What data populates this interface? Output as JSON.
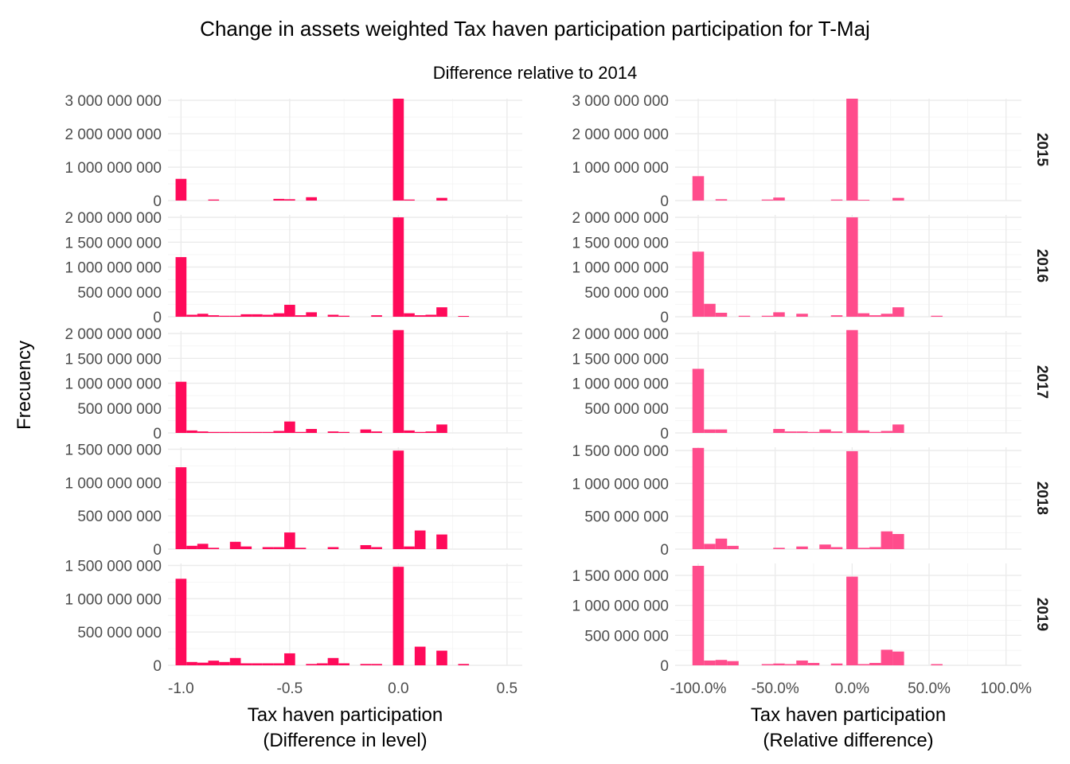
{
  "chart_data": {
    "type": "bar",
    "title": "Change in assets weighted Tax haven participation participation for T-Maj",
    "subtitle": "Difference relative to 2014",
    "ylabel": "Frecuency",
    "rows": [
      "2015",
      "2016",
      "2017",
      "2018",
      "2019"
    ],
    "colors": {
      "left": "#ff0a5a",
      "right": "#ff4c8c"
    },
    "columns": [
      {
        "xlabel": "Tax haven participation\n(Difference in level)",
        "xlim": [
          -1.06,
          0.57
        ],
        "xticks": [
          -1.0,
          -0.5,
          0.0,
          0.5
        ],
        "xtick_labels": [
          "-1.0",
          "-0.5",
          "0.0",
          "0.5"
        ],
        "binwidth": 0.05,
        "panels": [
          {
            "year": "2015",
            "ylim": [
              0,
              3050000000
            ],
            "yticks": [
              0,
              1000000000,
              2000000000,
              3000000000
            ],
            "ytick_labels": [
              "0",
              "1 000 000 000",
              "2 000 000 000",
              "3 000 000 000"
            ],
            "bars": [
              [
                -1.0,
                650000000
              ],
              [
                -0.85,
                30000000
              ],
              [
                -0.55,
                50000000
              ],
              [
                -0.5,
                40000000
              ],
              [
                -0.4,
                100000000
              ],
              [
                0.0,
                3050000000
              ],
              [
                0.05,
                30000000
              ],
              [
                0.2,
                80000000
              ]
            ]
          },
          {
            "year": "2016",
            "ylim": [
              0,
              2050000000
            ],
            "yticks": [
              0,
              500000000,
              1000000000,
              1500000000,
              2000000000
            ],
            "ytick_labels": [
              "0",
              "500 000 000",
              "1 000 000 000",
              "1 500 000 000",
              "2 000 000 000"
            ],
            "bars": [
              [
                -1.0,
                1200000000
              ],
              [
                -0.95,
                40000000
              ],
              [
                -0.9,
                60000000
              ],
              [
                -0.85,
                30000000
              ],
              [
                -0.8,
                20000000
              ],
              [
                -0.75,
                20000000
              ],
              [
                -0.7,
                50000000
              ],
              [
                -0.65,
                50000000
              ],
              [
                -0.6,
                40000000
              ],
              [
                -0.55,
                70000000
              ],
              [
                -0.5,
                240000000
              ],
              [
                -0.45,
                30000000
              ],
              [
                -0.4,
                90000000
              ],
              [
                -0.3,
                40000000
              ],
              [
                -0.25,
                20000000
              ],
              [
                -0.1,
                30000000
              ],
              [
                0.0,
                2000000000
              ],
              [
                0.05,
                70000000
              ],
              [
                0.1,
                30000000
              ],
              [
                0.15,
                40000000
              ],
              [
                0.2,
                190000000
              ],
              [
                0.3,
                10000000
              ]
            ]
          },
          {
            "year": "2017",
            "ylim": [
              0,
              2050000000
            ],
            "yticks": [
              0,
              500000000,
              1000000000,
              1500000000,
              2000000000
            ],
            "ytick_labels": [
              "0",
              "500 000 000",
              "1 000 000 000",
              "1 500 000 000",
              "2 000 000 000"
            ],
            "bars": [
              [
                -1.0,
                1030000000
              ],
              [
                -0.95,
                50000000
              ],
              [
                -0.9,
                30000000
              ],
              [
                -0.85,
                20000000
              ],
              [
                -0.8,
                20000000
              ],
              [
                -0.75,
                20000000
              ],
              [
                -0.7,
                20000000
              ],
              [
                -0.65,
                20000000
              ],
              [
                -0.6,
                20000000
              ],
              [
                -0.55,
                40000000
              ],
              [
                -0.5,
                230000000
              ],
              [
                -0.45,
                20000000
              ],
              [
                -0.4,
                80000000
              ],
              [
                -0.3,
                30000000
              ],
              [
                -0.25,
                20000000
              ],
              [
                -0.15,
                70000000
              ],
              [
                -0.1,
                30000000
              ],
              [
                0.0,
                2070000000
              ],
              [
                0.05,
                50000000
              ],
              [
                0.1,
                20000000
              ],
              [
                0.15,
                30000000
              ],
              [
                0.2,
                170000000
              ]
            ]
          },
          {
            "year": "2018",
            "ylim": [
              0,
              1530000000
            ],
            "yticks": [
              0,
              500000000,
              1000000000,
              1500000000
            ],
            "ytick_labels": [
              "0",
              "500 000 000",
              "1 000 000 000",
              "1 500 000 000"
            ],
            "bars": [
              [
                -1.0,
                1230000000
              ],
              [
                -0.95,
                50000000
              ],
              [
                -0.9,
                80000000
              ],
              [
                -0.85,
                20000000
              ],
              [
                -0.75,
                110000000
              ],
              [
                -0.7,
                40000000
              ],
              [
                -0.6,
                30000000
              ],
              [
                -0.55,
                30000000
              ],
              [
                -0.5,
                250000000
              ],
              [
                -0.45,
                20000000
              ],
              [
                -0.3,
                30000000
              ],
              [
                -0.15,
                60000000
              ],
              [
                -0.1,
                30000000
              ],
              [
                0.0,
                1480000000
              ],
              [
                0.05,
                40000000
              ],
              [
                0.1,
                280000000
              ],
              [
                0.2,
                220000000
              ]
            ]
          },
          {
            "year": "2019",
            "ylim": [
              0,
              1530000000
            ],
            "yticks": [
              0,
              500000000,
              1000000000,
              1500000000
            ],
            "ytick_labels": [
              "0",
              "500 000 000",
              "1 000 000 000",
              "1 500 000 000"
            ],
            "bars": [
              [
                -1.0,
                1300000000
              ],
              [
                -0.95,
                50000000
              ],
              [
                -0.9,
                40000000
              ],
              [
                -0.85,
                70000000
              ],
              [
                -0.8,
                50000000
              ],
              [
                -0.75,
                110000000
              ],
              [
                -0.7,
                30000000
              ],
              [
                -0.65,
                30000000
              ],
              [
                -0.6,
                30000000
              ],
              [
                -0.55,
                30000000
              ],
              [
                -0.5,
                180000000
              ],
              [
                -0.4,
                20000000
              ],
              [
                -0.35,
                30000000
              ],
              [
                -0.3,
                110000000
              ],
              [
                -0.25,
                30000000
              ],
              [
                -0.15,
                20000000
              ],
              [
                -0.1,
                20000000
              ],
              [
                0.0,
                1480000000
              ],
              [
                0.1,
                280000000
              ],
              [
                0.2,
                220000000
              ],
              [
                0.3,
                20000000
              ]
            ]
          }
        ]
      },
      {
        "xlabel": "Tax haven participation\n(Relative difference)",
        "xlim": [
          -1.15,
          1.1
        ],
        "xticks": [
          -1.0,
          -0.5,
          0.0,
          0.5,
          1.0
        ],
        "xtick_labels": [
          "-100.0%",
          "-50.0%",
          "0.0%",
          "50.0%",
          "100.0%"
        ],
        "binwidth": 0.075,
        "panels": [
          {
            "year": "2015",
            "ylim": [
              0,
              3050000000
            ],
            "yticks": [
              0,
              1000000000,
              2000000000,
              3000000000
            ],
            "ytick_labels": [
              "0",
              "1 000 000 000",
              "2 000 000 000",
              "3 000 000 000"
            ],
            "bars": [
              [
                -1.0,
                730000000
              ],
              [
                -0.85,
                40000000
              ],
              [
                -0.55,
                30000000
              ],
              [
                -0.475,
                90000000
              ],
              [
                -0.1,
                30000000
              ],
              [
                0.0,
                3050000000
              ],
              [
                0.075,
                20000000
              ],
              [
                0.3,
                80000000
              ]
            ]
          },
          {
            "year": "2016",
            "ylim": [
              0,
              2050000000
            ],
            "yticks": [
              0,
              500000000,
              1000000000,
              1500000000,
              2000000000
            ],
            "ytick_labels": [
              "0",
              "500 000 000",
              "1 000 000 000",
              "1 500 000 000",
              "2 000 000 000"
            ],
            "bars": [
              [
                -1.0,
                1310000000
              ],
              [
                -0.925,
                260000000
              ],
              [
                -0.85,
                80000000
              ],
              [
                -0.7,
                20000000
              ],
              [
                -0.55,
                20000000
              ],
              [
                -0.475,
                90000000
              ],
              [
                -0.325,
                60000000
              ],
              [
                -0.1,
                30000000
              ],
              [
                0.0,
                2000000000
              ],
              [
                0.075,
                70000000
              ],
              [
                0.15,
                30000000
              ],
              [
                0.225,
                60000000
              ],
              [
                0.3,
                190000000
              ],
              [
                0.55,
                20000000
              ]
            ]
          },
          {
            "year": "2017",
            "ylim": [
              0,
              2050000000
            ],
            "yticks": [
              0,
              500000000,
              1000000000,
              1500000000,
              2000000000
            ],
            "ytick_labels": [
              "0",
              "500 000 000",
              "1 000 000 000",
              "1 500 000 000",
              "2 000 000 000"
            ],
            "bars": [
              [
                -1.0,
                1290000000
              ],
              [
                -0.925,
                70000000
              ],
              [
                -0.85,
                70000000
              ],
              [
                -0.475,
                80000000
              ],
              [
                -0.4,
                30000000
              ],
              [
                -0.325,
                30000000
              ],
              [
                -0.25,
                20000000
              ],
              [
                -0.175,
                70000000
              ],
              [
                -0.1,
                30000000
              ],
              [
                0.0,
                2070000000
              ],
              [
                0.075,
                50000000
              ],
              [
                0.15,
                20000000
              ],
              [
                0.225,
                40000000
              ],
              [
                0.3,
                170000000
              ]
            ]
          },
          {
            "year": "2018",
            "ylim": [
              0,
              1550000000
            ],
            "yticks": [
              0,
              500000000,
              1000000000,
              1500000000
            ],
            "ytick_labels": [
              "0",
              "500 000 000",
              "1 000 000 000",
              "1 500 000 000"
            ],
            "bars": [
              [
                -1.0,
                1540000000
              ],
              [
                -0.925,
                80000000
              ],
              [
                -0.85,
                160000000
              ],
              [
                -0.775,
                50000000
              ],
              [
                -0.475,
                20000000
              ],
              [
                -0.325,
                40000000
              ],
              [
                -0.175,
                70000000
              ],
              [
                -0.1,
                30000000
              ],
              [
                0.0,
                1490000000
              ],
              [
                0.075,
                20000000
              ],
              [
                0.15,
                30000000
              ],
              [
                0.225,
                270000000
              ],
              [
                0.3,
                230000000
              ]
            ]
          },
          {
            "year": "2019",
            "ylim": [
              0,
              1700000000
            ],
            "yticks": [
              0,
              500000000,
              1000000000,
              1500000000
            ],
            "ytick_labels": [
              "0",
              "500 000 000",
              "1 000 000 000",
              "1 500 000 000"
            ],
            "bars": [
              [
                -1.0,
                1660000000
              ],
              [
                -0.925,
                80000000
              ],
              [
                -0.85,
                90000000
              ],
              [
                -0.775,
                70000000
              ],
              [
                -0.55,
                20000000
              ],
              [
                -0.475,
                30000000
              ],
              [
                -0.4,
                20000000
              ],
              [
                -0.325,
                80000000
              ],
              [
                -0.25,
                40000000
              ],
              [
                -0.1,
                30000000
              ],
              [
                0.0,
                1480000000
              ],
              [
                0.075,
                20000000
              ],
              [
                0.15,
                40000000
              ],
              [
                0.225,
                260000000
              ],
              [
                0.3,
                230000000
              ],
              [
                0.55,
                20000000
              ]
            ]
          }
        ]
      }
    ]
  }
}
